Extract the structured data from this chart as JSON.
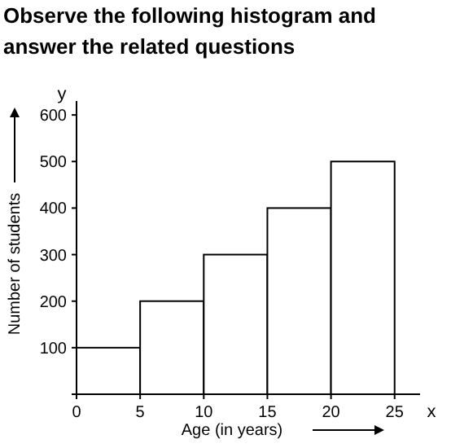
{
  "chart_data": {
    "type": "histogram",
    "title": "Observe the following histogram and answer the related questions",
    "xlabel": "Age (in years)",
    "ylabel": "Number of students",
    "bins": [
      0,
      5,
      10,
      15,
      20,
      25
    ],
    "values": [
      100,
      200,
      300,
      400,
      500
    ],
    "color": "#ffffff",
    "xlim": [
      0,
      27
    ],
    "ylim": [
      0,
      630
    ],
    "xticks": [
      0,
      5,
      10,
      15,
      20,
      25
    ],
    "yticks": [
      {
        "value": 0,
        "label": null
      },
      100,
      200,
      300,
      400,
      500,
      600
    ],
    "annotations": [
      "x",
      "y"
    ],
    "grid": false
  }
}
